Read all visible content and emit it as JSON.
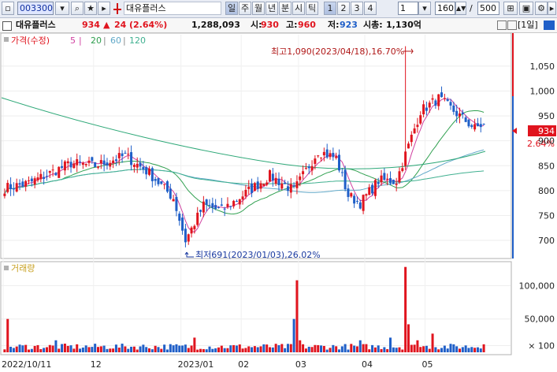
{
  "toolbar": {
    "code": "003300",
    "name": "대유플러스",
    "periods": [
      "일",
      "주",
      "월",
      "년",
      "분",
      "시",
      "틱"
    ],
    "active_period": "일",
    "numbers": [
      "1",
      "2",
      "3",
      "4"
    ],
    "active_number": "1",
    "select_value": "1",
    "count": "160",
    "count_sep": "/",
    "count_total": "500"
  },
  "infobar": {
    "name": "대유플러스",
    "price": "934",
    "change_arrow": "▲",
    "change": "24",
    "change_pct": "(2.64%)",
    "volume": "1,288,093",
    "open_label": "시:",
    "open": "930",
    "high_label": "고:",
    "high": "960",
    "low_label": "저:",
    "low": "923",
    "mcap_label": "시총:",
    "mcap": "1,130억",
    "period_box": "[1일]"
  },
  "legend": {
    "price": "가격(수정)",
    "ma": [
      "5",
      "20",
      "60",
      "120"
    ],
    "volume": "거래량"
  },
  "colors": {
    "up": "#e0141e",
    "down": "#1f5fc8",
    "ma5": "#d040a0",
    "ma20": "#30a050",
    "ma60": "#60a8c8",
    "ma120": "#40b090"
  },
  "price_axis": [
    "1,050",
    "1,000",
    "950",
    "900",
    "850",
    "800",
    "750",
    "700"
  ],
  "current_tag": {
    "price": "934",
    "pct": "2.64%"
  },
  "annotations": {
    "high": "최고1,090(2023/04/18),16.70%",
    "low": "최저691(2023/01/03),26.02%"
  },
  "volume_axis": [
    "100,000",
    "50,000",
    "× 100"
  ],
  "date_axis": [
    "2022/10/11",
    "12",
    "2023/01",
    "02",
    "03",
    "04",
    "05"
  ],
  "chart_data": {
    "type": "candlestick",
    "y_range": [
      670,
      1110
    ],
    "high": 1090,
    "low": 691,
    "last": 934
  }
}
